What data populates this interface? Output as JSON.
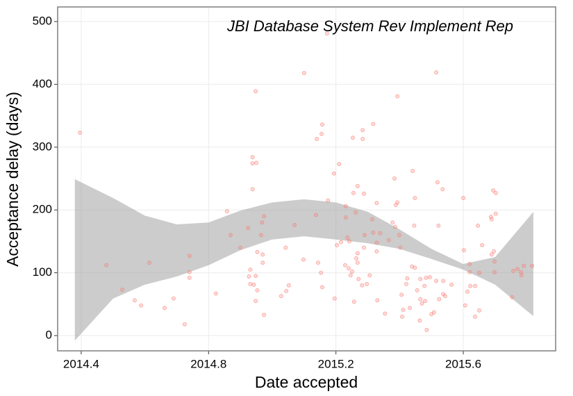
{
  "chart_data": {
    "type": "scatter",
    "title": "JBI Database System Rev Implement Rep",
    "x_label": "Date accepted",
    "y_label": "Acceptance delay (days)",
    "xlim": [
      2014.326,
      2015.89
    ],
    "xticks": [
      2014.4,
      2014.8,
      2015.2,
      2015.6
    ],
    "ylim": [
      -24.3,
      523.2
    ],
    "yticks": [
      0,
      100,
      200,
      300,
      400,
      500
    ],
    "grid": true,
    "series": [
      {
        "color": "#f8766d",
        "x": [
          2014.396,
          2014.479,
          2014.529,
          2014.568,
          2014.588,
          2014.614,
          2014.662,
          2014.69,
          2014.725,
          2014.74,
          2014.74,
          2014.74,
          2014.823,
          2014.858,
          2014.869,
          2014.9,
          2014.924,
          2014.927,
          2014.931,
          2014.931,
          2014.938,
          2014.938,
          2014.938,
          2014.942,
          2014.948,
          2014.948,
          2014.948,
          2014.95,
          2014.953,
          2014.953,
          2014.965,
          2014.968,
          2014.97,
          2014.97,
          2014.974,
          2014.974,
          2015.042,
          2015.028,
          2015.044,
          2015.052,
          2015.07,
          2015.1,
          2015.098,
          2015.137,
          2015.14,
          2015.144,
          2015.153,
          2015.155,
          2015.157,
          2015.157,
          2015.172,
          2015.175,
          2015.194,
          2015.196,
          2015.203,
          2015.21,
          2015.216,
          2015.229,
          2015.231,
          2015.231,
          2015.236,
          2015.24,
          2015.242,
          2015.246,
          2015.251,
          2015.253,
          2015.255,
          2015.257,
          2015.262,
          2015.264,
          2015.268,
          2015.268,
          2015.268,
          2015.271,
          2015.282,
          2015.284,
          2015.284,
          2015.288,
          2015.288,
          2015.29,
          2015.297,
          2015.306,
          2015.314,
          2015.317,
          2015.317,
          2015.328,
          2015.328,
          2015.328,
          2015.33,
          2015.339,
          2015.354,
          2015.366,
          2015.378,
          2015.384,
          2015.386,
          2015.388,
          2015.393,
          2015.393,
          2015.399,
          2015.402,
          2015.406,
          2015.408,
          2015.411,
          2015.421,
          2015.424,
          2015.432,
          2015.439,
          2015.441,
          2015.446,
          2015.448,
          2015.448,
          2015.455,
          2015.463,
          2015.465,
          2015.465,
          2015.47,
          2015.478,
          2015.48,
          2015.483,
          2015.485,
          2015.495,
          2015.5,
          2015.508,
          2015.515,
          2015.515,
          2015.519,
          2015.522,
          2015.524,
          2015.535,
          2015.537,
          2015.537,
          2015.543,
          2015.563,
          2015.6,
          2015.602,
          2015.606,
          2015.613,
          2015.62,
          2015.62,
          2015.622,
          2015.637,
          2015.637,
          2015.646,
          2015.65,
          2015.65,
          2015.659,
          2015.687,
          2015.689,
          2015.689,
          2015.694,
          2015.696,
          2015.698,
          2015.698,
          2015.702,
          2015.702,
          2015.753,
          2015.757,
          2015.77,
          2015.781,
          2015.783,
          2015.79,
          2015.816
        ],
        "values": [
          323,
          112,
          73,
          56,
          48,
          116,
          44,
          59,
          18,
          127,
          101,
          92,
          67,
          198,
          160,
          140,
          171,
          94,
          105,
          82,
          284,
          274,
          233,
          81,
          389,
          95,
          55,
          275,
          72,
          133,
          160,
          180,
          129,
          116,
          190,
          33,
          140,
          63,
          71,
          80,
          176,
          418,
          121,
          192,
          313,
          116,
          100,
          321,
          336,
          77,
          481,
          215,
          258,
          59,
          144,
          273,
          149,
          112,
          206,
          188,
          156,
          107,
          150,
          96,
          102,
          315,
          227,
          54,
          196,
          123,
          238,
          116,
          131,
          90,
          80,
          327,
          313,
          226,
          140,
          160,
          82,
          96,
          185,
          164,
          337,
          148,
          134,
          211,
          56,
          163,
          35,
          152,
          180,
          250,
          173,
          208,
          381,
          212,
          160,
          140,
          65,
          30,
          41,
          82,
          91,
          44,
          110,
          262,
          175,
          219,
          108,
          72,
          24,
          58,
          90,
          51,
          79,
          55,
          92,
          9,
          93,
          34,
          37,
          87,
          419,
          244,
          175,
          58,
          233,
          87,
          66,
          63,
          81,
          219,
          136,
          48,
          70,
          114,
          101,
          79,
          79,
          30,
          175,
          100,
          40,
          144,
          189,
          185,
          129,
          231,
          134,
          118,
          101,
          194,
          227,
          61,
          103,
          106,
          101,
          96,
          111,
          111
        ]
      }
    ],
    "band": {
      "color": "#999999",
      "x": [
        2014.38,
        2014.5,
        2014.6,
        2014.7,
        2014.8,
        2014.9,
        2015.0,
        2015.1,
        2015.2,
        2015.3,
        2015.4,
        2015.5,
        2015.6,
        2015.7,
        2015.82
      ],
      "upper": [
        249,
        219,
        191,
        177,
        180,
        199,
        212,
        217,
        212,
        197,
        169,
        138,
        114,
        125,
        197
      ],
      "lower": [
        -8,
        59,
        81,
        94,
        112,
        136,
        153,
        158,
        153,
        147,
        138,
        122,
        105,
        81,
        31
      ]
    }
  }
}
